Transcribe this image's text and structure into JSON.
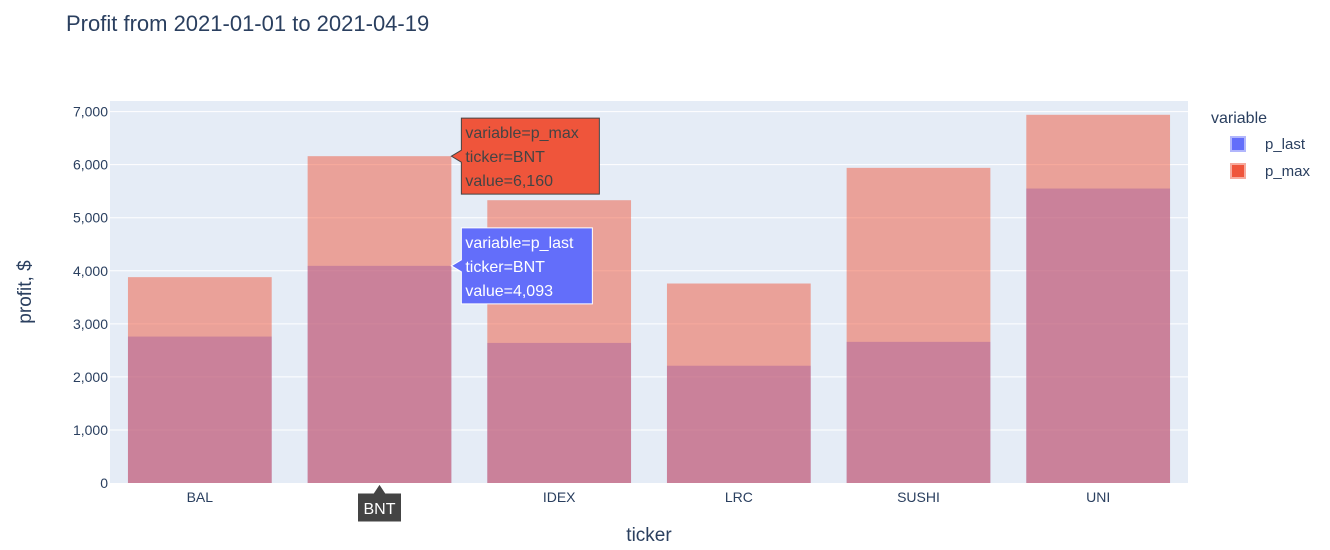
{
  "chart_data": {
    "type": "bar",
    "barmode": "overlay",
    "title": "Profit from 2021-01-01 to 2021-04-19",
    "xlabel": "ticker",
    "ylabel": "profit, $",
    "categories": [
      "BAL",
      "BNT",
      "IDEX",
      "LRC",
      "SUSHI",
      "UNI"
    ],
    "ylim": [
      0,
      7200
    ],
    "yticks": [
      0,
      1000,
      2000,
      3000,
      4000,
      5000,
      6000,
      7000
    ],
    "ytick_labels": [
      "0",
      "1,000",
      "2,000",
      "3,000",
      "4,000",
      "5,000",
      "6,000",
      "7,000"
    ],
    "grid": true,
    "legend": {
      "title": "variable",
      "placement": "top-right",
      "entries": [
        {
          "name": "p_last",
          "color": "#636efa"
        },
        {
          "name": "p_max",
          "color": "#ef553b"
        }
      ]
    },
    "series": [
      {
        "name": "p_last",
        "color": "#636efa",
        "values": [
          2760,
          4093,
          2640,
          2210,
          2660,
          5550
        ]
      },
      {
        "name": "p_max",
        "color": "#ef553b",
        "values": [
          3880,
          6160,
          5330,
          3760,
          5940,
          6940
        ]
      }
    ],
    "hover": {
      "category": "BNT",
      "axis_label": "BNT",
      "labels": [
        {
          "series": "p_max",
          "lines": [
            "variable=p_max",
            "ticker=BNT",
            "value=6,160"
          ]
        },
        {
          "series": "p_last",
          "lines": [
            "variable=p_last",
            "ticker=BNT",
            "value=4,093"
          ]
        }
      ]
    }
  }
}
